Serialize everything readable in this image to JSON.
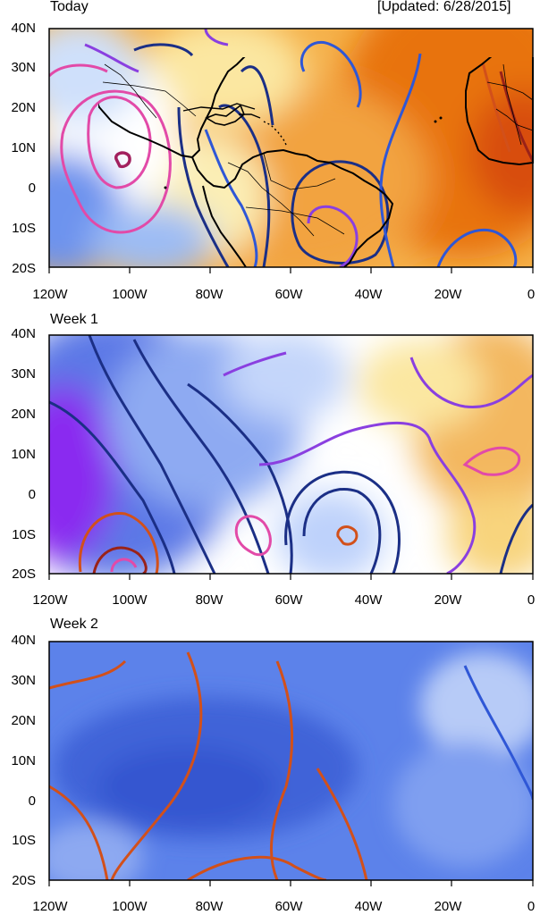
{
  "updated": "[Updated: 6/28/2015]",
  "lat_labels": [
    "40N",
    "30N",
    "20N",
    "10N",
    "0",
    "10S",
    "20S"
  ],
  "lon_labels": [
    "120W",
    "100W",
    "80W",
    "60W",
    "40W",
    "20W",
    "0"
  ],
  "panels": [
    {
      "title": "Today"
    },
    {
      "title": "Week 1"
    },
    {
      "title": "Week 2"
    }
  ],
  "colors": {
    "dark_blue": "#1b2f86",
    "mid_blue": "#2f57d6",
    "purple": "#8a3fe0",
    "pink": "#e24aa8",
    "magenta_dark": "#a2205e",
    "orange_red": "#d2501a",
    "dark_red": "#9a2218",
    "land_outline": "#000000"
  }
}
